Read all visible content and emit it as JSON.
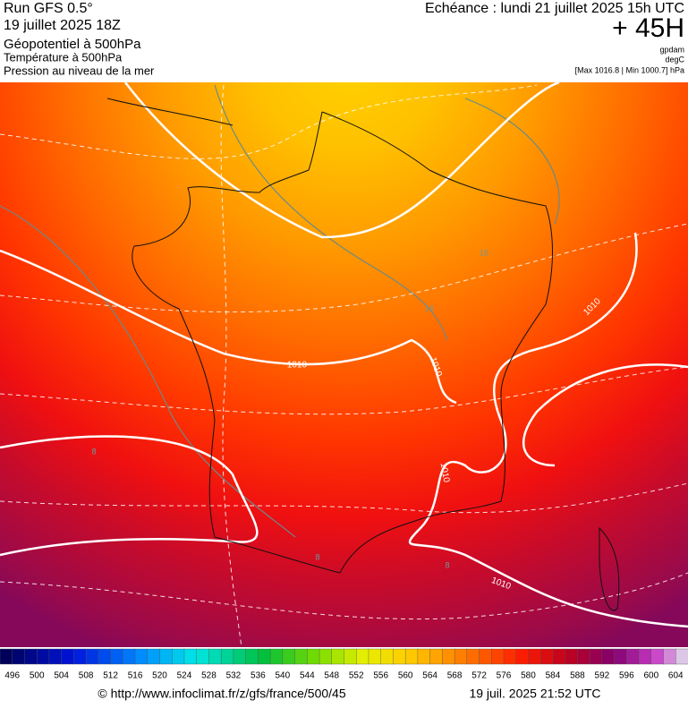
{
  "header": {
    "run": "Run GFS 0.5°",
    "date": "19 juillet 2025 18Z",
    "field1": "Géopotentiel à 500hPa",
    "field2": "Température à 500hPa",
    "field3": "Pression au niveau de la mer",
    "valid": "Echéance : lundi 21 juillet 2025 15h UTC",
    "lead": "+ 45H",
    "unit1": "gpdam",
    "unit2": "degC",
    "range": "[Max 1016.8 | Min 1000.7] hPa"
  },
  "map": {
    "isobar_labels": [
      "1010",
      "1010",
      "1010",
      "1010",
      "1010"
    ],
    "temperature_labels": [
      "16",
      "16",
      "8",
      "8",
      "8"
    ]
  },
  "scale": {
    "values": [
      496,
      500,
      504,
      508,
      512,
      516,
      520,
      524,
      528,
      532,
      536,
      540,
      544,
      548,
      552,
      556,
      560,
      564,
      568,
      572,
      576,
      580,
      584,
      588,
      592,
      596,
      600,
      604
    ]
  },
  "footer": {
    "url": "© http://www.infoclimat.fr/z/gfs/france/500/45",
    "timestamp": "19 juil. 2025 21:52 UTC"
  }
}
